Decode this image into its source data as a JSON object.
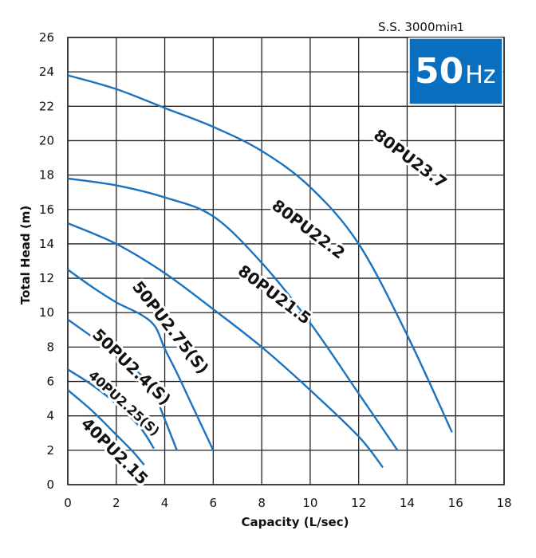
{
  "chart_data": {
    "type": "line",
    "title": "",
    "xlabel": "Capacity (L/sec)",
    "ylabel": "Total Head (m)",
    "xlim": [
      0,
      18
    ],
    "ylim": [
      0,
      26
    ],
    "xticks": [
      0,
      2,
      4,
      6,
      8,
      10,
      12,
      14,
      16,
      18
    ],
    "yticks": [
      0,
      2,
      4,
      6,
      8,
      10,
      12,
      14,
      16,
      18,
      20,
      22,
      24,
      26
    ],
    "grid": true,
    "line_color": "#1a73c0",
    "series": [
      {
        "name": "80PU23.7",
        "x": [
          0,
          2,
          4,
          6,
          8,
          10,
          12,
          14,
          15.85
        ],
        "y": [
          23.8,
          23.0,
          21.9,
          20.8,
          19.4,
          17.3,
          14.0,
          8.7,
          3.05
        ],
        "label_pos": [
          14.1,
          18.9
        ],
        "label_angle": 37,
        "label_size": 20
      },
      {
        "name": "80PU22.2",
        "x": [
          0,
          2,
          4,
          6,
          8,
          10,
          12,
          13.6
        ],
        "y": [
          17.8,
          17.4,
          16.7,
          15.6,
          12.9,
          9.4,
          5.3,
          2.0
        ],
        "label_pos": [
          9.9,
          14.8
        ],
        "label_angle": 37,
        "label_size": 20
      },
      {
        "name": "80PU21.5",
        "x": [
          0,
          2,
          4,
          6,
          8,
          10,
          12,
          13.0
        ],
        "y": [
          15.2,
          14.0,
          12.3,
          10.2,
          8.0,
          5.5,
          2.8,
          1.0
        ],
        "label_pos": [
          8.5,
          11.0
        ],
        "label_angle": 37,
        "label_size": 20
      },
      {
        "name": "50PU2.75(S)",
        "x": [
          0,
          1,
          2,
          3,
          3.6,
          4,
          4.5,
          5,
          5.5,
          6
        ],
        "y": [
          12.5,
          11.5,
          10.6,
          9.9,
          9.2,
          7.9,
          6.5,
          5.0,
          3.5,
          2.0
        ],
        "label_pos": [
          4.2,
          9.1
        ],
        "label_angle": 52,
        "label_size": 20
      },
      {
        "name": "50PU2.4(S)",
        "x": [
          0,
          1,
          2,
          3,
          3.5,
          4,
          4.5
        ],
        "y": [
          9.6,
          8.6,
          7.6,
          6.4,
          5.5,
          3.8,
          2.0
        ],
        "label_pos": [
          2.6,
          6.8
        ],
        "label_angle": 44,
        "label_size": 20
      },
      {
        "name": "40PU2.25(S)",
        "x": [
          0,
          1,
          2,
          3,
          3.55
        ],
        "y": [
          6.7,
          5.8,
          4.7,
          3.3,
          2.1
        ],
        "label_pos": [
          2.3,
          4.7
        ],
        "label_angle": 42,
        "label_size": 16
      },
      {
        "name": "40PU2.15",
        "x": [
          0,
          1,
          2,
          2.7,
          3.15
        ],
        "y": [
          5.5,
          4.3,
          2.9,
          1.9,
          1.15
        ],
        "label_pos": [
          1.9,
          1.9
        ],
        "label_angle": 45,
        "label_size": 20
      }
    ]
  },
  "header": {
    "speed_label": "S.S. 3000min",
    "speed_superscript": "-1",
    "frequency_value": "50",
    "frequency_unit": "Hz",
    "badge_color": "#0b6fc0"
  }
}
